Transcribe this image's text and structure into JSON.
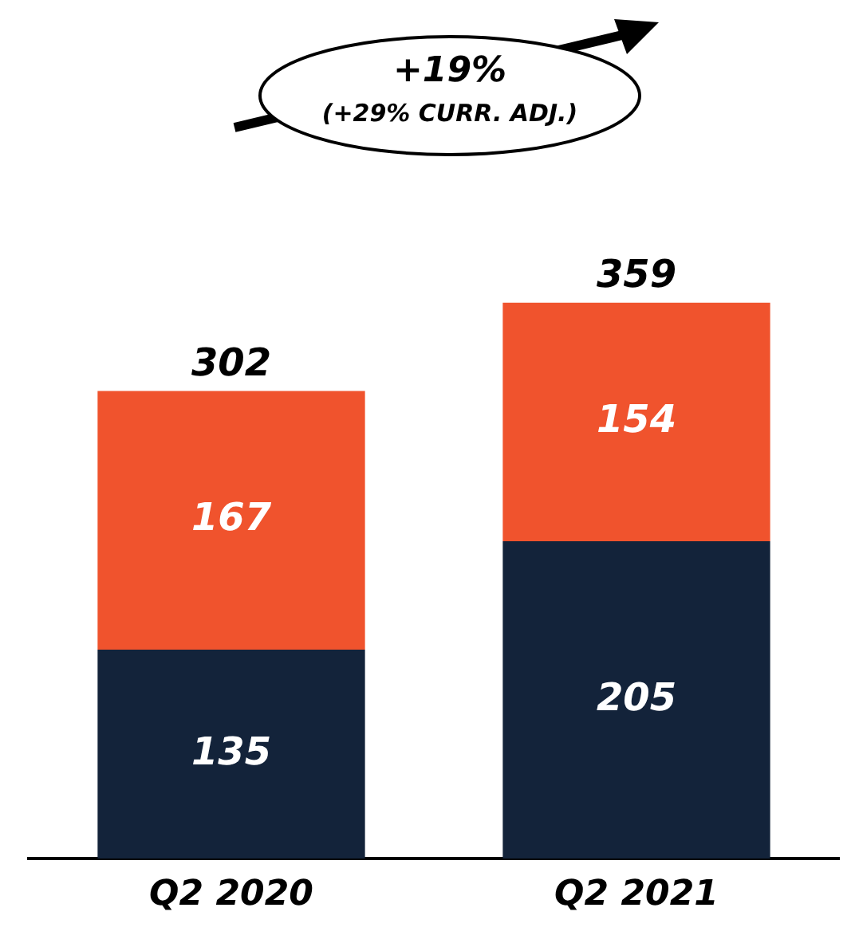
{
  "chart_data": {
    "type": "bar",
    "stacked": true,
    "relative": false,
    "categories": [
      "Q2 2020",
      "Q2 2021"
    ],
    "series": [
      {
        "color": "#13233a",
        "values": [
          135,
          205
        ]
      },
      {
        "color": "#f0532d",
        "values": [
          167,
          154
        ]
      }
    ],
    "totals": [
      "302",
      "359"
    ],
    "data_labels": true,
    "grid": false,
    "legend": false,
    "annotations": [
      "+19%",
      "(+29% CURR. ADJ.)"
    ]
  }
}
